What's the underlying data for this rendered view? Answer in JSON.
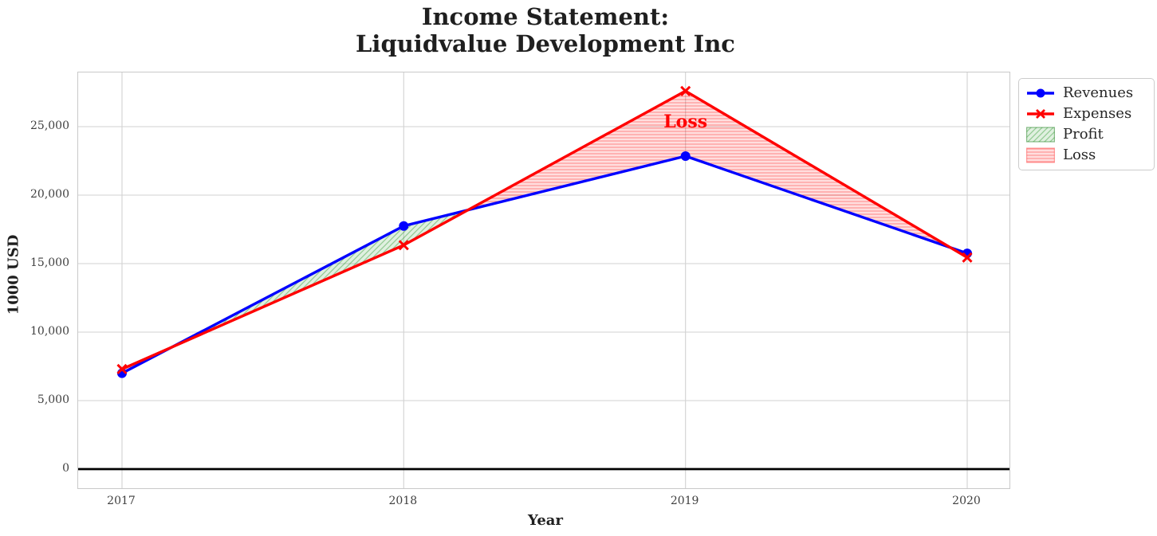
{
  "title": {
    "line1": "Income Statement:",
    "line2": "Liquidvalue Development Inc"
  },
  "chart_data": {
    "type": "line",
    "x": [
      2017,
      2018,
      2019,
      2020
    ],
    "xtick_labels": [
      "2017",
      "2018",
      "2019",
      "2020"
    ],
    "yticks": [
      0,
      5000,
      10000,
      15000,
      20000,
      25000
    ],
    "ytick_labels": [
      "0",
      "5,000",
      "10,000",
      "15,000",
      "20,000",
      "25,000"
    ],
    "ylim": [
      -1400,
      28950
    ],
    "xlabel": "Year",
    "ylabel": "1000 USD",
    "grid": true,
    "grid_color": "#d2d2d2",
    "spine_color": "#c9c9c9",
    "zero_line_color": "#000000",
    "legend_position": "outside upper right",
    "series": [
      {
        "name": "Revenues",
        "color": "#0000ff",
        "marker": "circle",
        "values": [
          7000,
          17750,
          22850,
          15750
        ]
      },
      {
        "name": "Expenses",
        "color": "#ff0000",
        "marker": "x",
        "values": [
          7300,
          16350,
          27600,
          15450
        ]
      }
    ],
    "fills": [
      {
        "name": "Profit",
        "condition": "revenues >= expenses",
        "face": "rgba(0,128,0,0.12)",
        "hatch": "diagonal",
        "hatch_color": "rgba(0,128,0,0.35)",
        "edge": "rgba(0,110,0,0.45)"
      },
      {
        "name": "Loss",
        "condition": "expenses >= revenues",
        "face": "rgba(255,0,0,0.13)",
        "hatch": "horizontal",
        "hatch_color": "rgba(255,0,0,0.33)",
        "edge": "rgba(255,0,0,0.35)"
      }
    ],
    "annotation": {
      "text": "Loss",
      "x": 2019,
      "y": 25350,
      "color": "#ff0000"
    }
  }
}
